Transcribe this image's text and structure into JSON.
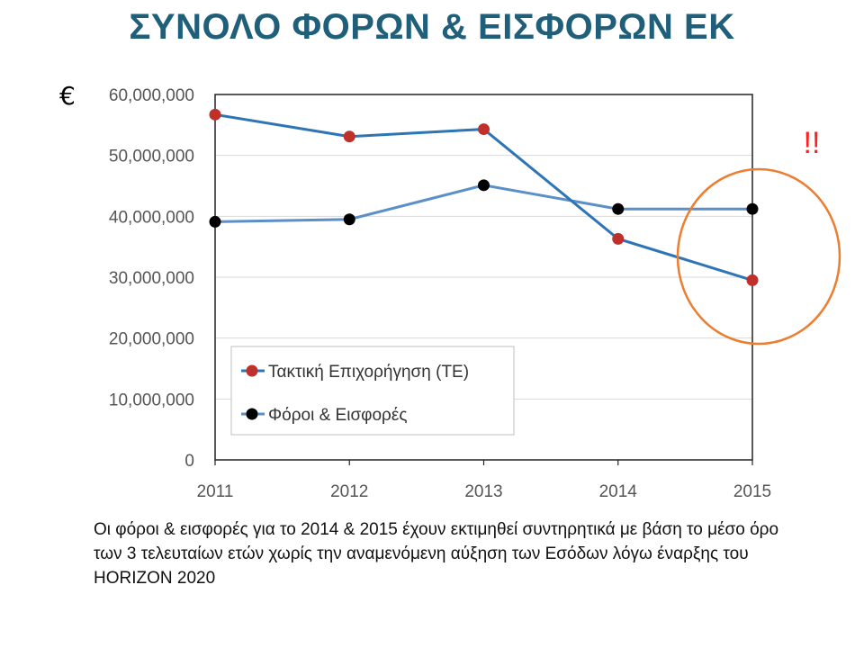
{
  "chart_data": {
    "type": "line",
    "title": "ΣΥΝΟΛΟ ΦΟΡΩΝ & ΕΙΣΦΟΡΩΝ ΕΚ",
    "ylabel": "€",
    "xlabel": "",
    "x": [
      "2011",
      "2012",
      "2013",
      "2014",
      "2015"
    ],
    "ylim": [
      0,
      60000000
    ],
    "yticks": [
      "0",
      "10,000,000",
      "20,000,000",
      "30,000,000",
      "40,000,000",
      "50,000,000",
      "60,000,000"
    ],
    "grid": "horizontal",
    "legend_placement": "bottom-left",
    "annotation": "!!",
    "series": [
      {
        "name": "Τακτική Επιχορήγηση (ΤΕ)",
        "values": [
          56700000,
          53100000,
          54300000,
          36300000,
          29500000
        ],
        "marker_color": "#c0302a",
        "line_color": "#2e75b6"
      },
      {
        "name": "Φόροι & Εισφορές",
        "values": [
          39100000,
          39500000,
          45100000,
          41200000,
          41200000
        ],
        "marker_color": "#000000",
        "line_color": "#5b8fc7"
      }
    ]
  },
  "note": "Οι φόροι & εισφορές για το 2014 & 2015 έχουν εκτιμηθεί συντηρητικά με βάση το μέσο όρο των 3 τελευταίων ετών χωρίς την αναμενόμενη αύξηση των Εσόδων λόγω έναρξης του HORIZON 2020"
}
